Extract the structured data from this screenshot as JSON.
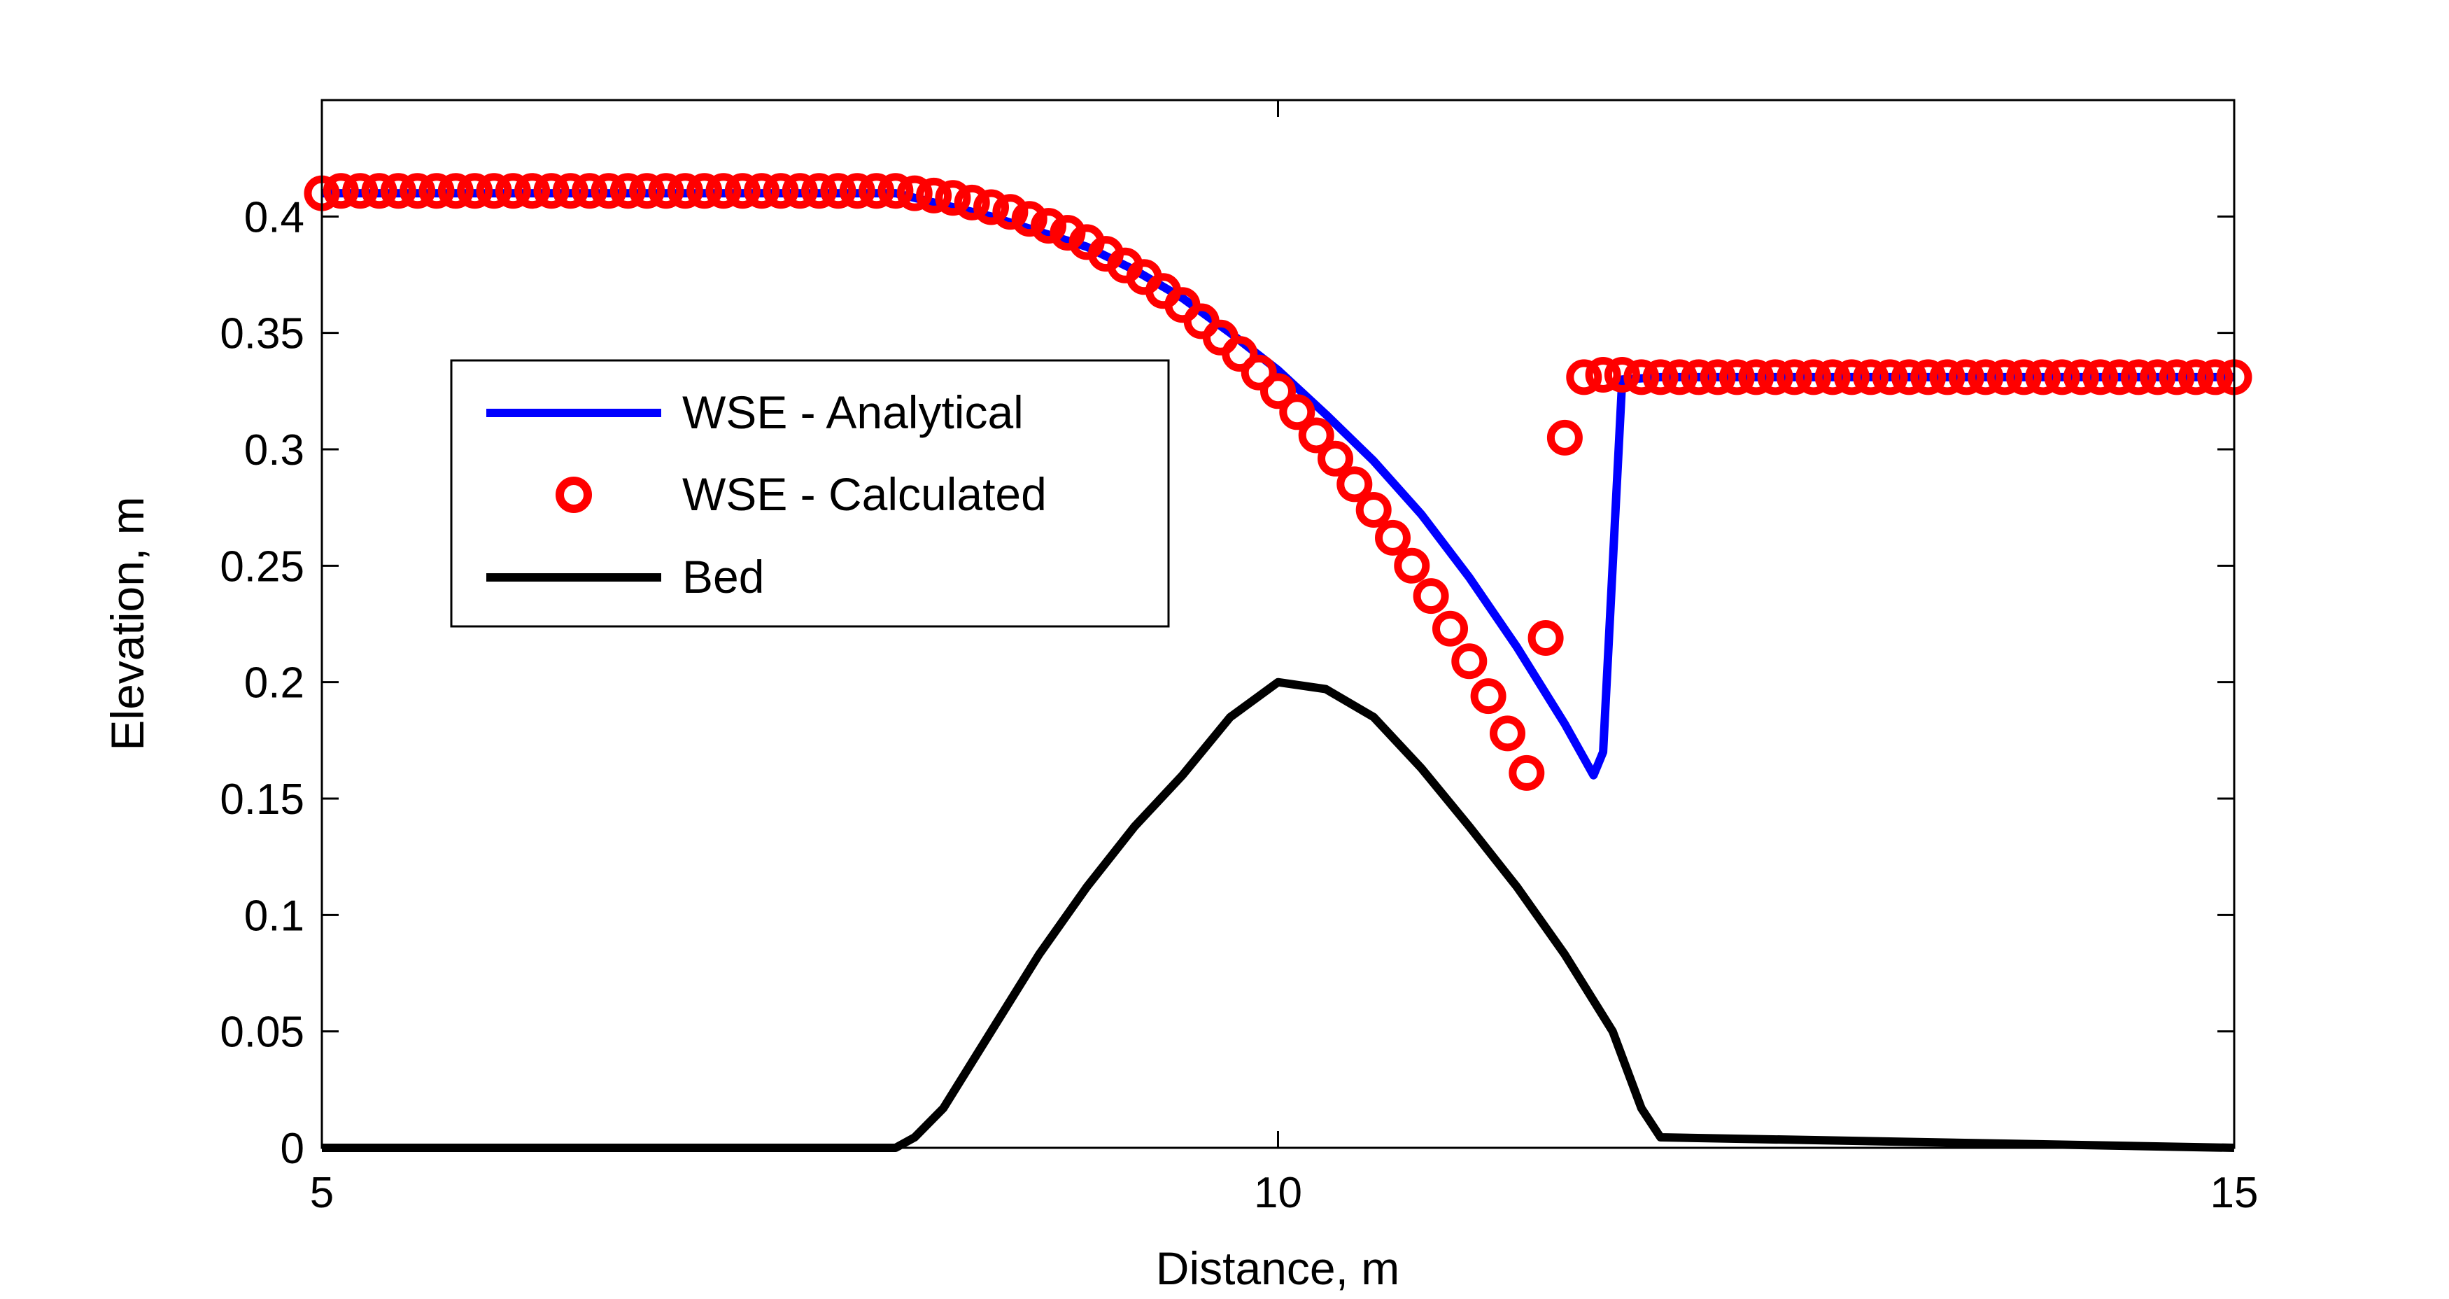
{
  "chart_data": {
    "type": "line",
    "title": "",
    "xlabel": "Distance, m",
    "ylabel": "Elevation, m",
    "xlim": [
      5,
      15
    ],
    "ylim": [
      0,
      0.45
    ],
    "xticks": [
      5,
      10,
      15
    ],
    "xtick_labels": [
      "5",
      "10",
      "15"
    ],
    "yticks": [
      0,
      0.05,
      0.1,
      0.15,
      0.2,
      0.25,
      0.3,
      0.35,
      0.4
    ],
    "ytick_labels": [
      "0",
      "0.05",
      "0.1",
      "0.15",
      "0.2",
      "0.25",
      "0.3",
      "0.35",
      "0.4"
    ],
    "grid": false,
    "legend_position": "center-left",
    "series": [
      {
        "name": "WSE - Analytical",
        "style": "line",
        "color": "#0000ff",
        "x": [
          5,
          6,
          7,
          8,
          8.5,
          9,
          9.25,
          9.5,
          9.75,
          10,
          10.25,
          10.5,
          10.75,
          11,
          11.25,
          11.5,
          11.65,
          11.7,
          11.8,
          12,
          12.5,
          13,
          14,
          15
        ],
        "y": [
          0.41,
          0.41,
          0.41,
          0.41,
          0.4,
          0.387,
          0.377,
          0.365,
          0.35,
          0.334,
          0.315,
          0.295,
          0.272,
          0.245,
          0.215,
          0.182,
          0.16,
          0.17,
          0.33,
          0.331,
          0.331,
          0.331,
          0.331,
          0.331
        ]
      },
      {
        "name": "WSE - Calculated",
        "style": "markers",
        "marker": "circle",
        "color": "#ff0000",
        "x": [
          5,
          5.1,
          5.2,
          5.3,
          5.4,
          5.5,
          5.6,
          5.7,
          5.8,
          5.9,
          6,
          6.1,
          6.2,
          6.3,
          6.4,
          6.5,
          6.6,
          6.7,
          6.8,
          6.9,
          7,
          7.1,
          7.2,
          7.3,
          7.4,
          7.5,
          7.6,
          7.7,
          7.8,
          7.9,
          8,
          8.1,
          8.2,
          8.3,
          8.4,
          8.5,
          8.6,
          8.7,
          8.8,
          8.9,
          9,
          9.1,
          9.2,
          9.3,
          9.4,
          9.5,
          9.6,
          9.7,
          9.8,
          9.9,
          10,
          10.1,
          10.2,
          10.3,
          10.4,
          10.5,
          10.6,
          10.7,
          10.8,
          10.9,
          11,
          11.1,
          11.2,
          11.3,
          11.4,
          11.5,
          11.6,
          11.7,
          11.8,
          11.9,
          12,
          12.1,
          12.2,
          12.3,
          12.4,
          12.5,
          12.6,
          12.7,
          12.8,
          12.9,
          13,
          13.1,
          13.2,
          13.3,
          13.4,
          13.5,
          13.6,
          13.7,
          13.8,
          13.9,
          14,
          14.1,
          14.2,
          14.3,
          14.4,
          14.5,
          14.6,
          14.7,
          14.8,
          14.9,
          15
        ],
        "y": [
          0.41,
          0.411,
          0.411,
          0.411,
          0.411,
          0.411,
          0.411,
          0.411,
          0.411,
          0.411,
          0.411,
          0.411,
          0.411,
          0.411,
          0.411,
          0.411,
          0.411,
          0.411,
          0.411,
          0.411,
          0.411,
          0.411,
          0.411,
          0.411,
          0.411,
          0.411,
          0.411,
          0.411,
          0.411,
          0.411,
          0.411,
          0.41,
          0.409,
          0.408,
          0.406,
          0.404,
          0.402,
          0.399,
          0.396,
          0.393,
          0.389,
          0.384,
          0.379,
          0.374,
          0.368,
          0.362,
          0.355,
          0.348,
          0.341,
          0.333,
          0.325,
          0.316,
          0.306,
          0.296,
          0.285,
          0.274,
          0.262,
          0.25,
          0.237,
          0.223,
          0.209,
          0.194,
          0.178,
          0.161,
          0.219,
          0.305,
          0.331,
          0.332,
          0.332,
          0.331,
          0.331,
          0.331,
          0.331,
          0.331,
          0.331,
          0.331,
          0.331,
          0.331,
          0.331,
          0.331,
          0.331,
          0.331,
          0.331,
          0.331,
          0.331,
          0.331,
          0.331,
          0.331,
          0.331,
          0.331,
          0.331,
          0.331,
          0.331,
          0.331,
          0.331,
          0.331,
          0.331,
          0.331,
          0.331,
          0.331,
          0.331
        ]
      },
      {
        "name": "Bed",
        "style": "line",
        "color": "#000000",
        "x": [
          5,
          8,
          8.1,
          8.25,
          8.5,
          8.75,
          9,
          9.25,
          9.5,
          9.75,
          10,
          10.25,
          10.5,
          10.75,
          11,
          11.25,
          11.5,
          11.75,
          11.9,
          12,
          15
        ],
        "y": [
          0,
          0,
          0.0045,
          0.017,
          0.05,
          0.083,
          0.112,
          0.138,
          0.16,
          0.185,
          0.2,
          0.197,
          0.185,
          0.163,
          0.138,
          0.112,
          0.083,
          0.05,
          0.017,
          0.0045,
          0
        ]
      }
    ]
  }
}
